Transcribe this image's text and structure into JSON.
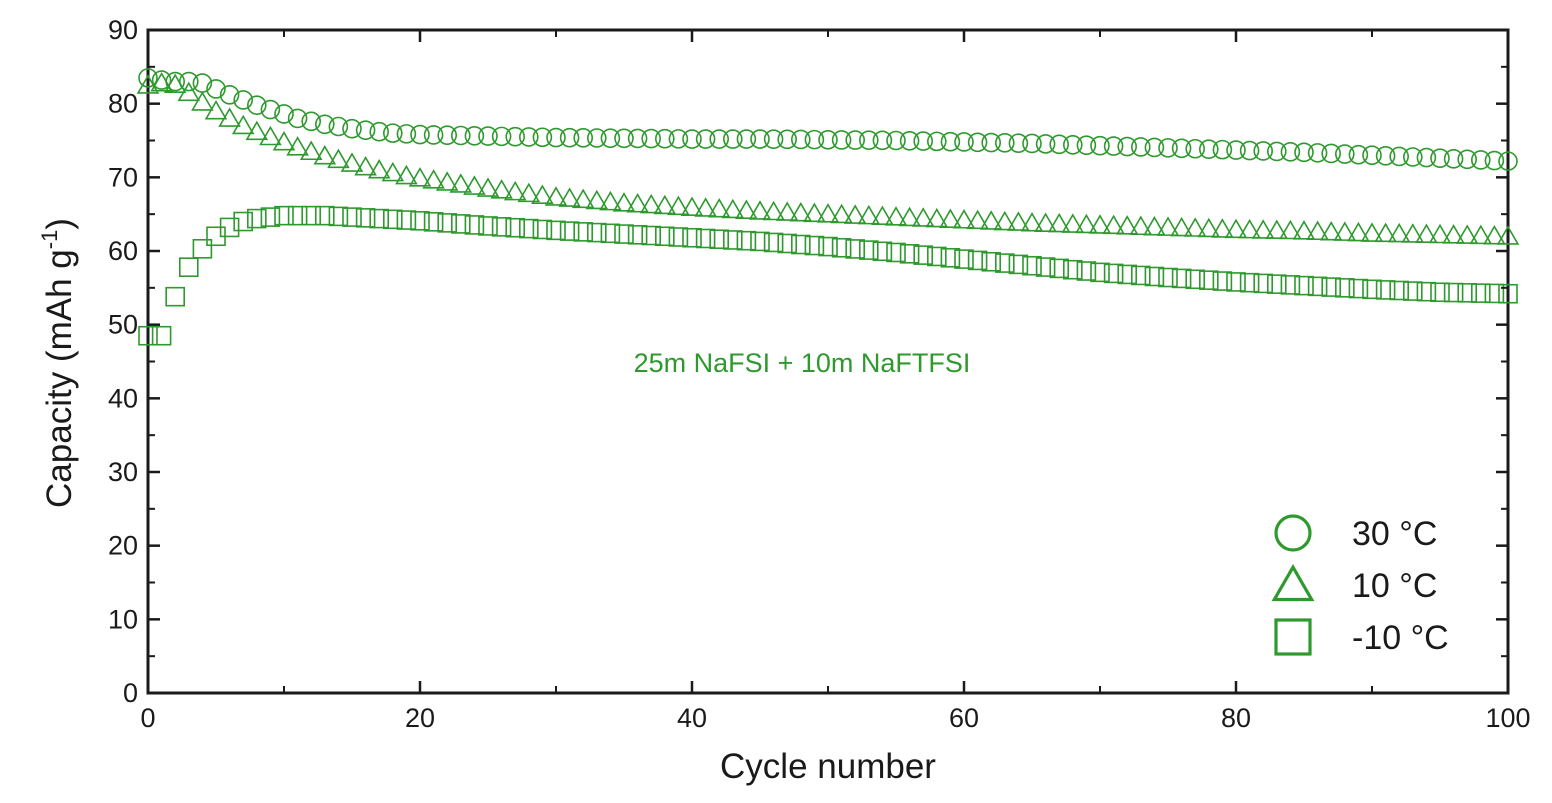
{
  "chart_data": {
    "type": "scatter",
    "title": "",
    "xlabel": "Cycle number",
    "ylabel": "Capacity  (mAh g",
    "ylabel_sup": "-1",
    "ylabel_end": ")",
    "xlim": [
      0,
      100
    ],
    "ylim": [
      0,
      90
    ],
    "xticks": [
      0,
      20,
      40,
      60,
      80,
      100
    ],
    "yticks": [
      0,
      10,
      20,
      30,
      40,
      50,
      60,
      70,
      80,
      90
    ],
    "grid": false,
    "legend_position": "bottom-right",
    "annotation": "25m NaFSI + 10m NaFTFSI",
    "marker_color": "#2e9a2e",
    "series": [
      {
        "name": "30 °C",
        "marker": "circle",
        "x": [
          0,
          1,
          2,
          3,
          4,
          5,
          6,
          7,
          8,
          9,
          10,
          11,
          12,
          13,
          14,
          15,
          16,
          17,
          18,
          19,
          20,
          25,
          30,
          35,
          40,
          45,
          50,
          55,
          60,
          65,
          70,
          75,
          80,
          85,
          90,
          95,
          100
        ],
        "y": [
          83.5,
          83.2,
          83.0,
          83.0,
          82.8,
          82.0,
          81.2,
          80.5,
          79.8,
          79.2,
          78.6,
          78.0,
          77.6,
          77.2,
          76.9,
          76.6,
          76.4,
          76.2,
          76.0,
          75.9,
          75.8,
          75.6,
          75.4,
          75.3,
          75.2,
          75.2,
          75.1,
          75.0,
          74.8,
          74.6,
          74.3,
          74.0,
          73.7,
          73.4,
          73.0,
          72.6,
          72.2
        ]
      },
      {
        "name": "10 °C",
        "marker": "triangle",
        "x": [
          0,
          1,
          2,
          3,
          4,
          5,
          6,
          7,
          8,
          9,
          10,
          11,
          12,
          13,
          14,
          15,
          16,
          17,
          18,
          19,
          20,
          25,
          30,
          35,
          40,
          45,
          50,
          55,
          60,
          65,
          70,
          75,
          80,
          85,
          90,
          95,
          100
        ],
        "y": [
          82.5,
          82.8,
          82.6,
          81.5,
          80.2,
          79.0,
          78.0,
          77.0,
          76.2,
          75.5,
          74.8,
          74.1,
          73.5,
          72.9,
          72.4,
          71.9,
          71.4,
          71.0,
          70.6,
          70.2,
          69.9,
          68.5,
          67.3,
          66.5,
          65.9,
          65.4,
          65.0,
          64.6,
          64.2,
          63.8,
          63.5,
          63.2,
          62.9,
          62.7,
          62.4,
          62.2,
          62.0
        ]
      },
      {
        "name": "-10 °C",
        "marker": "square",
        "x": [
          0,
          1,
          2,
          3,
          4,
          5,
          6,
          7,
          8,
          9,
          10,
          11,
          12,
          13,
          14,
          15,
          16,
          17,
          18,
          19,
          20,
          25,
          30,
          35,
          40,
          45,
          50,
          55,
          60,
          65,
          70,
          75,
          80,
          85,
          90,
          95,
          100
        ],
        "y": [
          48.5,
          48.5,
          53.8,
          57.8,
          60.3,
          62.0,
          63.2,
          64.0,
          64.4,
          64.6,
          64.8,
          64.8,
          64.8,
          64.8,
          64.7,
          64.6,
          64.5,
          64.4,
          64.3,
          64.2,
          64.1,
          63.4,
          62.8,
          62.3,
          61.8,
          61.3,
          60.6,
          59.8,
          58.9,
          58.0,
          57.1,
          56.4,
          55.8,
          55.3,
          54.8,
          54.4,
          54.2
        ]
      }
    ]
  }
}
